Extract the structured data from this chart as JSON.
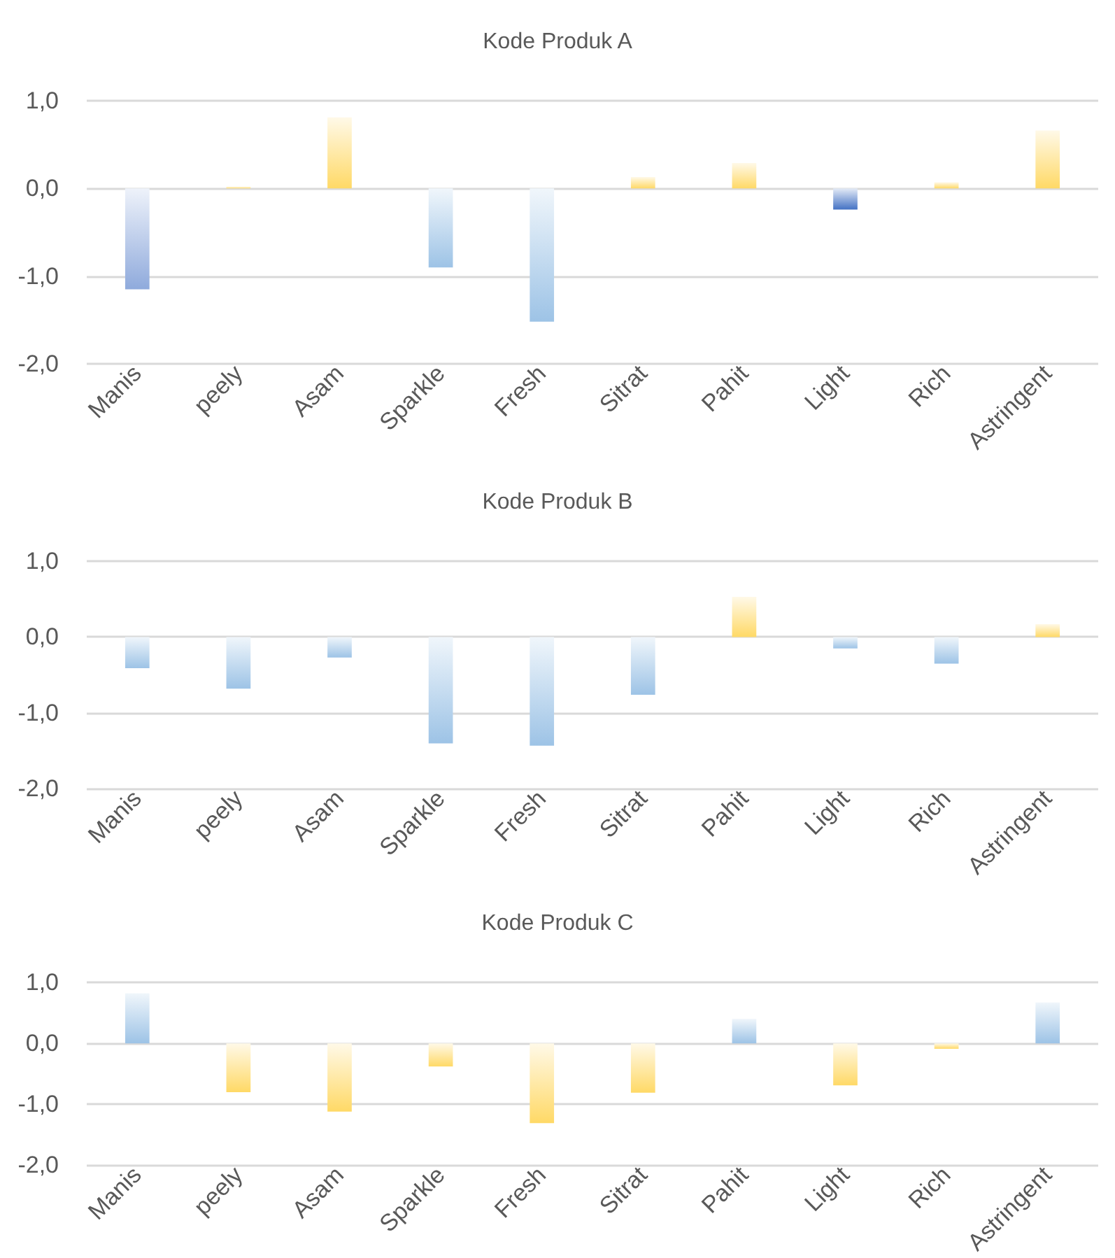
{
  "chart_data": [
    {
      "type": "bar",
      "title": "Kode Produk A",
      "categories": [
        "Manis",
        "peely",
        "Asam",
        "Sparkle",
        "Fresh",
        "Sitrat",
        "Pahit",
        "Light",
        "Rich",
        "Astringent"
      ],
      "values": [
        -1.15,
        0.02,
        0.81,
        -0.9,
        -1.52,
        0.13,
        0.29,
        -0.24,
        0.07,
        0.66
      ],
      "colors": [
        "#8faadc",
        "#ffd966",
        "#ffd966",
        "#9dc3e6",
        "#9dc3e6",
        "#ffd966",
        "#ffd966",
        "#4472c4",
        "#ffd966",
        "#ffd966"
      ],
      "ylim": [
        -2,
        1
      ],
      "yticks": [
        {
          "value": -2,
          "label": "-2,0"
        },
        {
          "value": -1,
          "label": "-1,0"
        },
        {
          "value": 0,
          "label": "0,0"
        },
        {
          "value": 1,
          "label": "1,0"
        }
      ],
      "grid": "y"
    },
    {
      "type": "bar",
      "title": "Kode Produk B",
      "categories": [
        "Manis",
        "peely",
        "Asam",
        "Sparkle",
        "Fresh",
        "Sitrat",
        "Pahit",
        "Light",
        "Rich",
        "Astringent"
      ],
      "values": [
        -0.41,
        -0.68,
        -0.27,
        -1.4,
        -1.43,
        -0.76,
        0.53,
        -0.15,
        -0.35,
        0.17
      ],
      "colors": [
        "#9dc3e6",
        "#9dc3e6",
        "#9dc3e6",
        "#9dc3e6",
        "#9dc3e6",
        "#9dc3e6",
        "#ffd966",
        "#9dc3e6",
        "#9dc3e6",
        "#ffd966"
      ],
      "ylim": [
        -2,
        1
      ],
      "yticks": [
        {
          "value": -2,
          "label": "-2,0"
        },
        {
          "value": -1,
          "label": "-1,0"
        },
        {
          "value": 0,
          "label": "0,0"
        },
        {
          "value": 1,
          "label": "1,0"
        }
      ],
      "grid": "y"
    },
    {
      "type": "bar",
      "title": "Kode Produk C",
      "categories": [
        "Manis",
        "peely",
        "Asam",
        "Sparkle",
        "Fresh",
        "Sitrat",
        "Pahit",
        "Light",
        "Rich",
        "Astringent"
      ],
      "values": [
        0.82,
        -0.8,
        -1.12,
        -0.38,
        -1.31,
        -0.81,
        0.4,
        -0.69,
        -0.09,
        0.67
      ],
      "colors": [
        "#9dc3e6",
        "#ffd966",
        "#ffd966",
        "#ffd966",
        "#ffd966",
        "#ffd966",
        "#9dc3e6",
        "#ffd966",
        "#ffd966",
        "#9dc3e6"
      ],
      "ylim": [
        -2,
        1
      ],
      "yticks": [
        {
          "value": -2,
          "label": "-2,0"
        },
        {
          "value": -1,
          "label": "-1,0"
        },
        {
          "value": 0,
          "label": "0,0"
        },
        {
          "value": 1,
          "label": "1,0"
        }
      ],
      "grid": "y"
    }
  ]
}
